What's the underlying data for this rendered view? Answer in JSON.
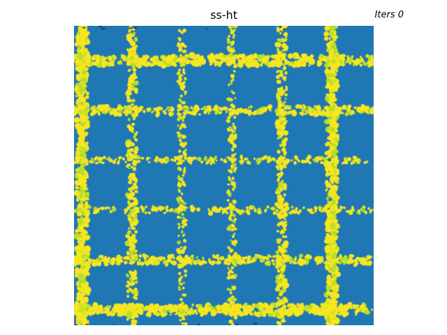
{
  "title": "ss-ht",
  "iteration_label": "Iters 0",
  "field": {
    "grid_cells": 6,
    "colors": {
      "background": "#1f77b4",
      "defect": "#f5e61f",
      "defect_edge": "#b5de2b",
      "dark_speck": "#440154"
    }
  }
}
